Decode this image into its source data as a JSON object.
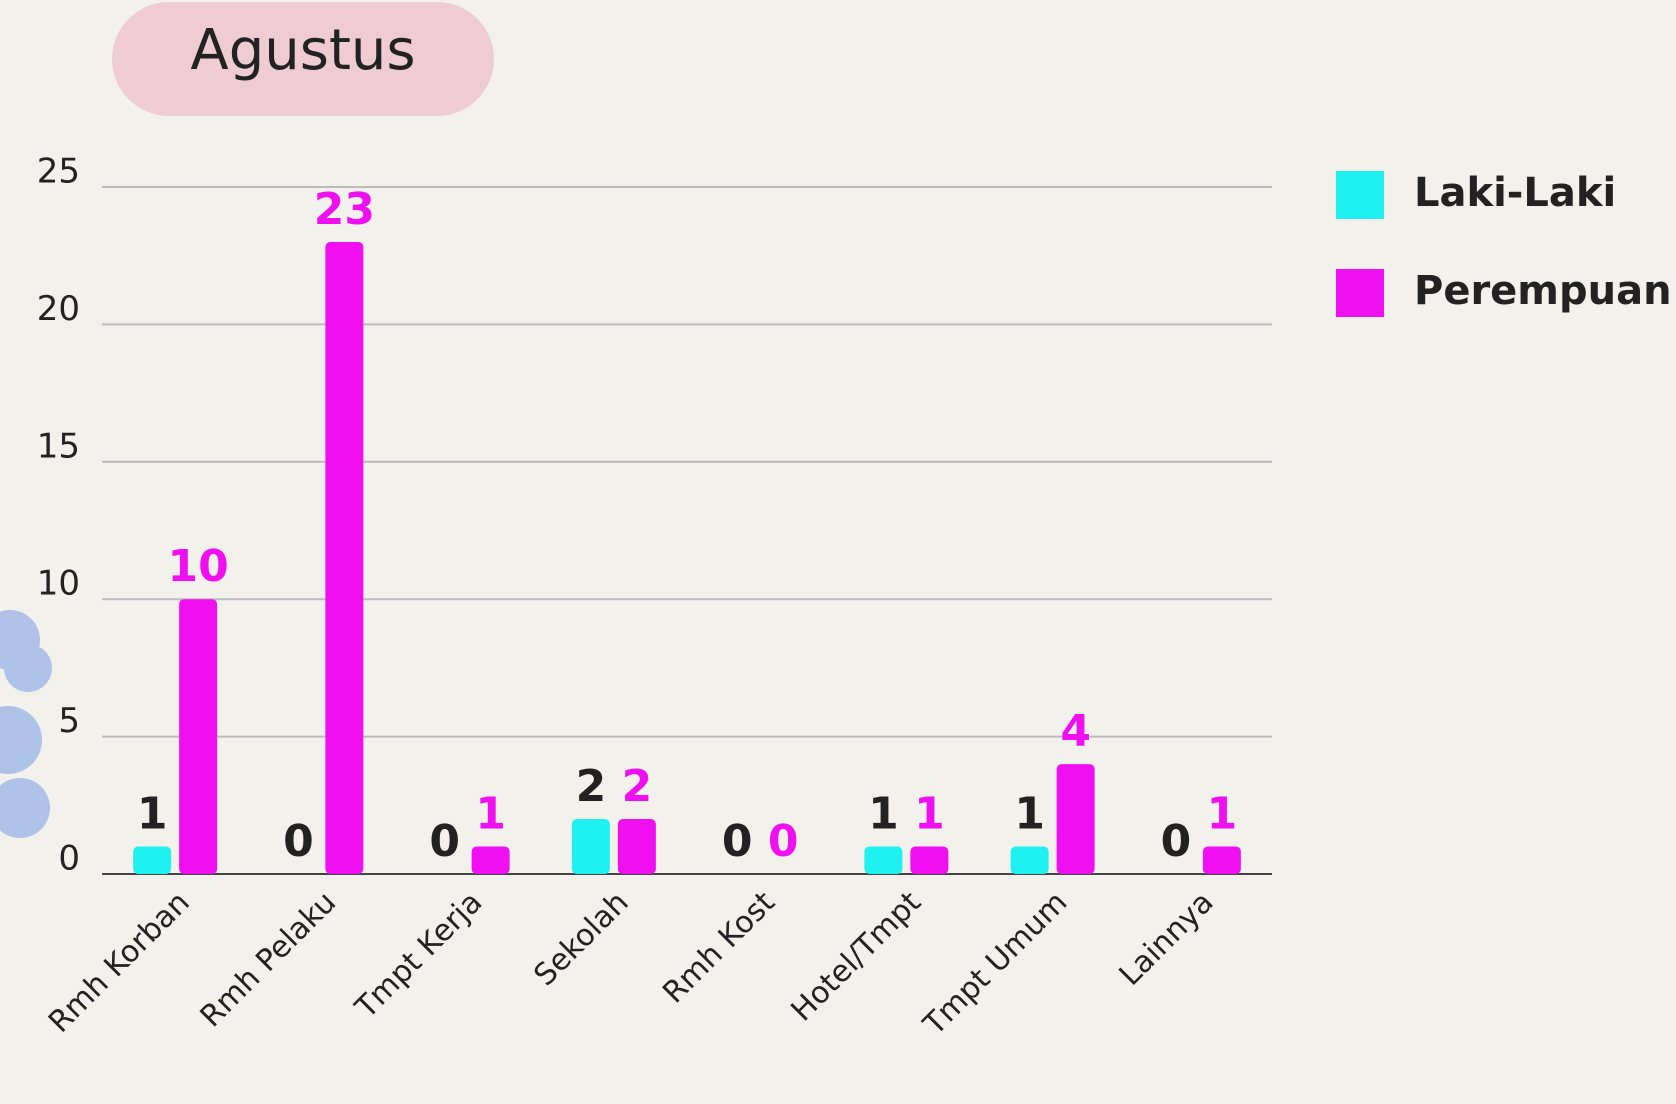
{
  "chart_data": {
    "type": "bar",
    "title": "Agustus",
    "categories": [
      "Rmh Korban",
      "Rmh Pelaku",
      "Tmpt Kerja",
      "Sekolah",
      "Rmh Kost",
      "Hotel/Tmpt",
      "Tmpt Umum",
      "Lainnya"
    ],
    "series": [
      {
        "name": "Laki-Laki",
        "color": "#1ff0f0",
        "values": [
          1,
          0,
          0,
          2,
          0,
          1,
          1,
          0
        ]
      },
      {
        "name": "Perempuan",
        "color": "#f00ff0",
        "values": [
          10,
          23,
          1,
          2,
          0,
          1,
          4,
          1
        ]
      }
    ],
    "ylim": [
      0,
      25
    ],
    "yticks": [
      0,
      5,
      10,
      15,
      20,
      25
    ],
    "grid": true,
    "legend": "right"
  }
}
